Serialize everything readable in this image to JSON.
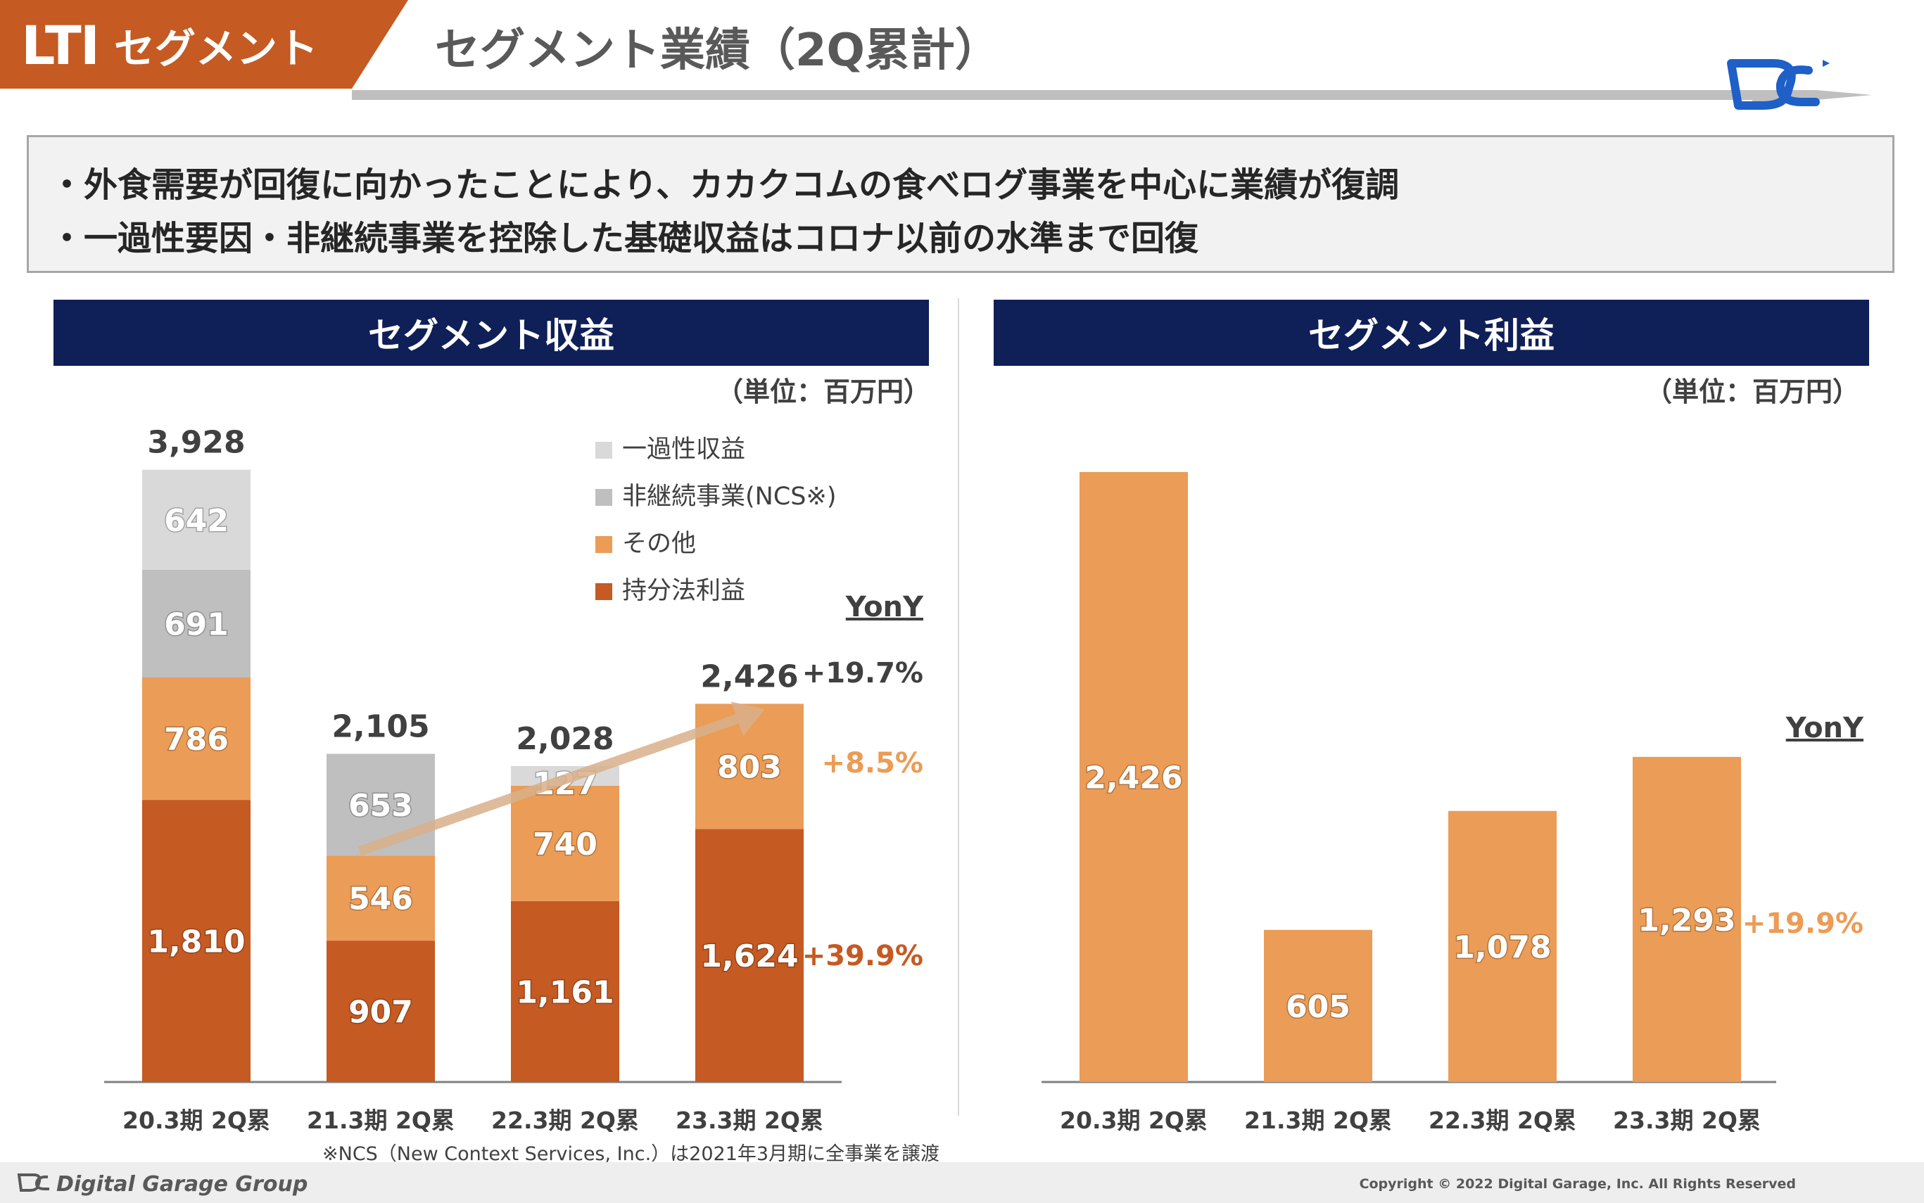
{
  "header": {
    "tag_lti": "LTI",
    "tag_segment": "セグメント",
    "title": "セグメント業績（2Q累計）"
  },
  "summary": {
    "bullets": [
      "・外食需要が回復に向かったことにより、カカクコムの食べログ事業を中心に業績が復調",
      "・一過性要因・非継続事業を控除した基礎収益はコロナ以前の水準まで回復"
    ]
  },
  "panels": {
    "revenue_title": "セグメント収益",
    "profit_title": "セグメント利益",
    "unit": "（単位：百万円）"
  },
  "chart_data": [
    {
      "type": "bar",
      "stacked": true,
      "title": "セグメント収益",
      "unit": "（単位：百万円）",
      "categories": [
        "20.3期 2Q累",
        "21.3期 2Q累",
        "22.3期 2Q累",
        "23.3期 2Q累"
      ],
      "series": [
        {
          "name": "持分法利益",
          "color": "#c55a22",
          "values": [
            1810,
            907,
            1161,
            1624
          ],
          "labels": [
            "1,810",
            "907",
            "1,161",
            "1,624"
          ]
        },
        {
          "name": "その他",
          "color": "#eb9c56",
          "values": [
            786,
            546,
            740,
            803
          ],
          "labels": [
            "786",
            "546",
            "740",
            "803"
          ]
        },
        {
          "name": "非継続事業(NCS※)",
          "color": "#bfbfbf",
          "values": [
            691,
            653,
            0,
            0
          ],
          "labels": [
            "691",
            "653",
            "",
            ""
          ]
        },
        {
          "name": "一過性収益",
          "color": "#d9d9d9",
          "values": [
            642,
            0,
            127,
            0
          ],
          "labels": [
            "642",
            "",
            "127",
            ""
          ]
        }
      ],
      "totals": [
        "3,928",
        "2,105",
        "2,028",
        "2,426"
      ],
      "legend_order": [
        "一過性収益",
        "非継続事業(NCS※)",
        "その他",
        "持分法利益"
      ],
      "legend_position": "top-right",
      "yony": {
        "header": "YonY",
        "total": "+19.7%",
        "other": "+8.5%",
        "equity": "+39.9%",
        "total_color": "#404040",
        "other_color": "#eb9c56",
        "equity_color": "#c55a22"
      },
      "trend_arrow": {
        "from": "21.3期 2Q累",
        "to": "23.3期 2Q累",
        "color": "#d9b08a"
      },
      "footnote": "※NCS（New Context Services, Inc.）は2021年3月期に全事業を譲渡"
    },
    {
      "type": "bar",
      "title": "セグメント利益",
      "unit": "（単位：百万円）",
      "categories": [
        "20.3期 2Q累",
        "21.3期 2Q累",
        "22.3期 2Q累",
        "23.3期 2Q累"
      ],
      "series": [
        {
          "name": "セグメント利益",
          "color": "#eb9c56",
          "values": [
            2426,
            605,
            1078,
            1293
          ],
          "labels": [
            "2,426",
            "605",
            "1,078",
            "1,293"
          ]
        }
      ],
      "yony": {
        "header": "YonY",
        "value": "+19.9%",
        "color": "#eb9c56"
      }
    }
  ],
  "footer": {
    "brand": "Digital Garage Group",
    "copyright": "Copyright © 2022 Digital Garage, Inc. All Rights Reserved"
  },
  "colors": {
    "accent": "#c55a22",
    "navy": "#0f1f57",
    "logo_blue": "#1e5fc8"
  }
}
